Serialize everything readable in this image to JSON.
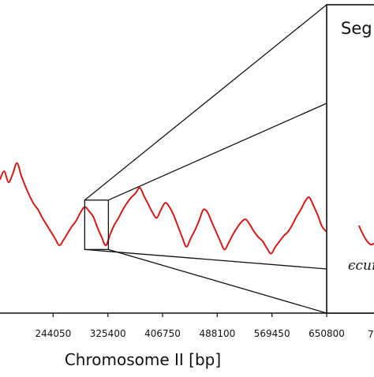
{
  "chart_data": {
    "type": "line",
    "title": "",
    "xlabel": "Chromosome II [bp]",
    "ylabel": "",
    "x_tick_labels": [
      "244050",
      "325400",
      "406750",
      "488100",
      "569450",
      "650800"
    ],
    "x_tick_values": [
      244050,
      325400,
      406750,
      488100,
      569450,
      650800
    ],
    "xlim": [
      165000,
      650800
    ],
    "y_range_relative": [
      0,
      1
    ],
    "grid": false,
    "legend": "none",
    "series": [
      {
        "color": "#d11a1a",
        "x": [
          165000,
          171300,
          177600,
          183900,
          190200,
          196500,
          202800,
          209100,
          215400,
          221700,
          228000,
          234300,
          240600,
          246900,
          253200,
          259500,
          265800,
          272100,
          278400,
          284700,
          291000,
          297300,
          303600,
          309900,
          316200,
          322500,
          328800,
          335100,
          341400,
          347700,
          354000,
          360300,
          366600,
          372900,
          379200,
          385500,
          391800,
          398100,
          404400,
          410700,
          417000,
          423300,
          429600,
          435900,
          442200,
          448500,
          454800,
          461100,
          467400,
          473700,
          480000,
          486300,
          492600,
          498900,
          505200,
          511500,
          517800,
          524100,
          530400,
          536700,
          543000,
          549300,
          555600,
          561900,
          568200,
          574500,
          580800,
          587100,
          593400,
          599700,
          606000,
          612300,
          618600,
          624900,
          631200,
          637500,
          643800,
          650100
        ],
        "y": [
          0.6,
          0.66,
          0.58,
          0.64,
          0.72,
          0.63,
          0.55,
          0.48,
          0.42,
          0.38,
          0.32,
          0.27,
          0.22,
          0.17,
          0.12,
          0.16,
          0.21,
          0.26,
          0.3,
          0.36,
          0.4,
          0.37,
          0.33,
          0.25,
          0.18,
          0.12,
          0.2,
          0.27,
          0.32,
          0.38,
          0.43,
          0.47,
          0.5,
          0.54,
          0.48,
          0.42,
          0.36,
          0.32,
          0.38,
          0.43,
          0.4,
          0.34,
          0.26,
          0.18,
          0.11,
          0.17,
          0.23,
          0.3,
          0.38,
          0.36,
          0.29,
          0.22,
          0.15,
          0.09,
          0.14,
          0.2,
          0.25,
          0.29,
          0.31,
          0.27,
          0.22,
          0.18,
          0.15,
          0.1,
          0.06,
          0.11,
          0.15,
          0.19,
          0.22,
          0.27,
          0.33,
          0.38,
          0.44,
          0.47,
          0.41,
          0.34,
          0.26,
          0.22
        ]
      }
    ],
    "zoom_window": {
      "x_range": [
        291000,
        326200
      ],
      "y_range_relative": [
        0.09,
        0.45
      ]
    },
    "inset": {
      "title_visible": "Seg",
      "x_tick_label_visible": "7",
      "annotation_visible": "ϵcur"
    }
  }
}
